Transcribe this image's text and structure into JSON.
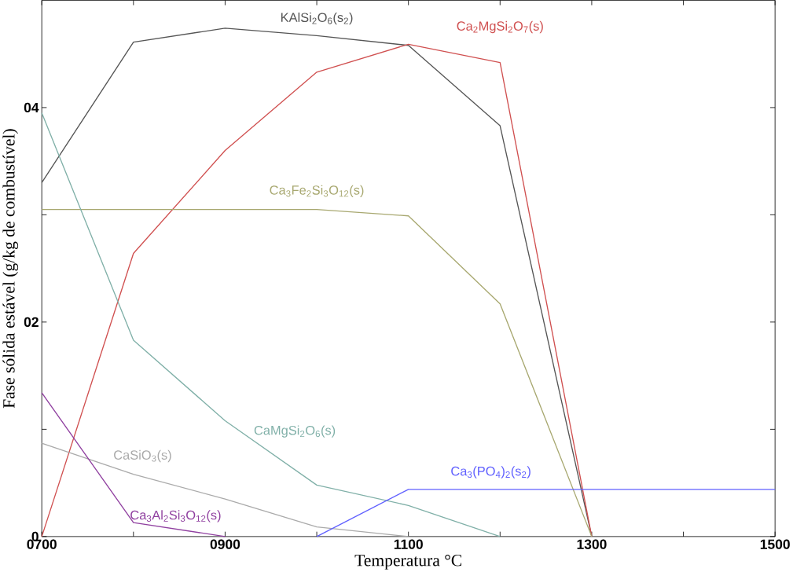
{
  "chart_data": {
    "type": "line",
    "xlabel": "Temperatura °C",
    "ylabel": "Fase sólida estável (g/kg de combustível)",
    "x": [
      700,
      800,
      900,
      1000,
      1100,
      1200,
      1300,
      1400,
      1500
    ],
    "xlim": [
      700,
      1500
    ],
    "ylim": [
      0,
      5
    ],
    "xticks": [
      {
        "value": 700,
        "label": "0700"
      },
      {
        "value": 800,
        "label": null
      },
      {
        "value": 900,
        "label": "0900"
      },
      {
        "value": 1000,
        "label": null
      },
      {
        "value": 1100,
        "label": "1100"
      },
      {
        "value": 1200,
        "label": null
      },
      {
        "value": 1300,
        "label": "1300"
      },
      {
        "value": 1400,
        "label": null
      },
      {
        "value": 1500,
        "label": "1500"
      }
    ],
    "yticks": [
      0,
      {
        "value": 1,
        "label": null
      },
      {
        "value": 2,
        "label": "02"
      },
      {
        "value": 3,
        "label": null
      },
      {
        "value": 4,
        "label": "04"
      }
    ],
    "grid": false,
    "legend": false,
    "marker": "none",
    "line_style": "solid",
    "series": [
      {
        "name": "KAlSi$_{2}$O$_{6}$(s$_{2}$)",
        "color": "#555555",
        "values": [
          3.3,
          4.61,
          4.74,
          4.67,
          4.58,
          3.83,
          0,
          null,
          null
        ]
      },
      {
        "name": "Ca$_{2}$MgSi$_{2}$O$_{7}$(s)",
        "color": "#d05050",
        "values": [
          0,
          2.64,
          3.6,
          4.33,
          4.59,
          4.42,
          0,
          null,
          null
        ]
      },
      {
        "name": "Ca$_{3}$Fe$_{2}$Si$_{3}$O$_{12}$(s)",
        "color": "#a8a870",
        "values": [
          3.05,
          3.05,
          3.05,
          3.05,
          2.99,
          2.17,
          0,
          null,
          null
        ]
      },
      {
        "name": "CaMgSi$_{2}$O$_{6}$(s)",
        "color": "#80b0a8",
        "values": [
          3.95,
          1.83,
          1.08,
          0.48,
          0.29,
          0,
          null,
          null,
          null
        ]
      },
      {
        "name": "CaSiO$_{3}$(s)",
        "color": "#aaaaaa",
        "values": [
          0.87,
          0.58,
          0.35,
          0.09,
          0,
          null,
          null,
          null,
          null
        ]
      },
      {
        "name": "Ca$_{3}$Al$_{2}$Si$_{3}$O$_{12}$(s)",
        "color": "#9040a0",
        "values": [
          1.34,
          0.13,
          0,
          null,
          null,
          null,
          null,
          null,
          null
        ]
      },
      {
        "name": "Ca$_{3}$(PO$_{4}$)$_{2}$(s$_{2}$)",
        "color": "#6060ff",
        "values": [
          null,
          null,
          null,
          0,
          0.44,
          0.44,
          0.44,
          0.44,
          0.44
        ]
      }
    ]
  }
}
